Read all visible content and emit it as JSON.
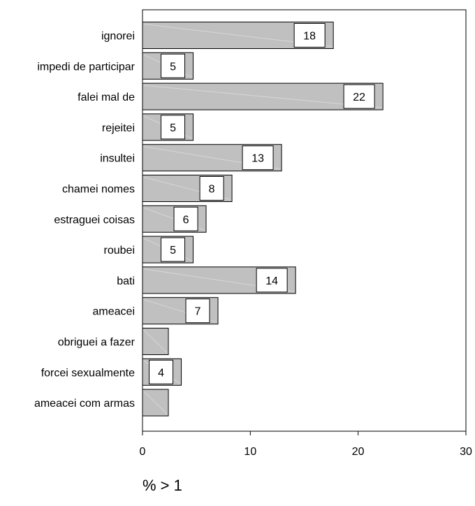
{
  "chart_data": {
    "type": "bar",
    "orientation": "horizontal",
    "categories": [
      "ignorei",
      "impedi de participar",
      "falei mal de",
      "rejeitei",
      "insultei",
      "chamei nomes",
      "estraguei coisas",
      "roubei",
      "bati",
      "ameacei",
      "obriguei a fazer",
      "forcei sexualmente",
      "ameacei com armas"
    ],
    "values": [
      17.7,
      4.7,
      22.3,
      4.7,
      12.9,
      8.3,
      5.9,
      4.7,
      14.2,
      7.0,
      2.4,
      3.6,
      2.4
    ],
    "data_labels": [
      "18",
      "5",
      "22",
      "5",
      "13",
      "8",
      "6",
      "5",
      "14",
      "7",
      "",
      "4",
      ""
    ],
    "xlabel": "% > 1",
    "ylabel": "",
    "title": "",
    "xlim": [
      0,
      30
    ],
    "xticks": [
      "0",
      "10",
      "20",
      "30"
    ],
    "grid": false,
    "bar_color": "#c0c0c0",
    "bar_outline": "#000000"
  }
}
